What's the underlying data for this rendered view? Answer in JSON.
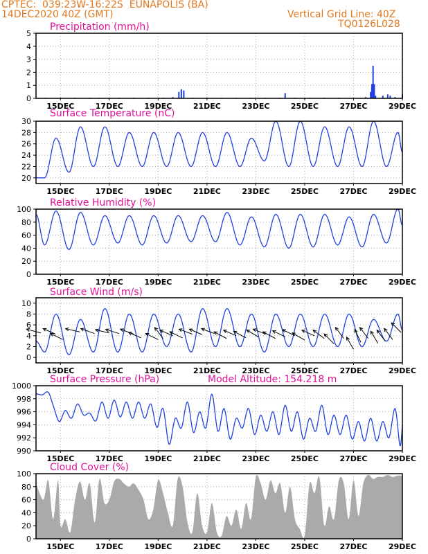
{
  "header": {
    "station": "CPTEC:  039:23W-16:22S  EUNAPOLIS (BA)",
    "date": "14DEC2020 40Z (GMT)",
    "vgrid": "Vertical Grid Line: 40Z",
    "code": "TQ0126L028"
  },
  "colors": {
    "line": "#2040e0",
    "title": "#e0109a",
    "header": "#e07820",
    "cloud": "#aaaaaa",
    "grid": "#aaaaaa"
  },
  "chart_data": [
    {
      "id": "precip",
      "type": "bar",
      "title": "Precipitation (mm/h)",
      "ylim": [
        0,
        5
      ],
      "yticks": [
        0,
        1,
        2,
        3,
        4,
        5
      ],
      "xticks": [
        "15DEC",
        "17DEC",
        "19DEC",
        "21DEC",
        "23DEC",
        "25DEC",
        "27DEC",
        "29DEC"
      ],
      "grid": true,
      "points": [
        [
          14.4,
          0.05
        ],
        [
          15.0,
          0.05
        ],
        [
          15.6,
          0.05
        ],
        [
          16.2,
          0.05
        ],
        [
          16.6,
          0.05
        ],
        [
          17.4,
          0.05
        ],
        [
          18.0,
          0.05
        ],
        [
          18.6,
          0.05
        ],
        [
          19.2,
          0.05
        ],
        [
          19.6,
          0.1
        ],
        [
          19.85,
          0.5
        ],
        [
          19.95,
          0.7
        ],
        [
          20.05,
          0.6
        ],
        [
          20.4,
          0.05
        ],
        [
          21.0,
          0.05
        ],
        [
          21.6,
          0.05
        ],
        [
          22.2,
          0.05
        ],
        [
          22.8,
          0.05
        ],
        [
          23.4,
          0.05
        ],
        [
          24.0,
          0.05
        ],
        [
          24.2,
          0.4
        ],
        [
          24.6,
          0.05
        ],
        [
          25.2,
          0.05
        ],
        [
          25.8,
          0.05
        ],
        [
          26.4,
          0.05
        ],
        [
          27.0,
          0.05
        ],
        [
          27.5,
          0.1
        ],
        [
          27.7,
          0.5
        ],
        [
          27.75,
          1.1
        ],
        [
          27.8,
          2.5
        ],
        [
          27.85,
          1.1
        ],
        [
          27.9,
          0.2
        ],
        [
          28.2,
          0.2
        ],
        [
          28.4,
          0.3
        ],
        [
          28.5,
          0.2
        ],
        [
          28.7,
          0.1
        ],
        [
          29.0,
          0.3
        ]
      ]
    },
    {
      "id": "temp",
      "type": "line",
      "title": "Surface Temperature (nC)",
      "ylim": [
        19,
        30
      ],
      "yticks": [
        20,
        22,
        24,
        26,
        28,
        30
      ],
      "xticks": [
        "15DEC",
        "17DEC",
        "19DEC",
        "21DEC",
        "23DEC",
        "25DEC",
        "27DEC",
        "29DEC"
      ],
      "grid": true,
      "days": [
        14.5,
        15.5,
        16.5,
        17.5,
        18.5,
        19.5,
        20.5,
        21.5,
        22.5,
        23.5,
        24.5,
        25.5,
        26.5,
        27.5,
        28.5
      ],
      "min": [
        20,
        21,
        22,
        22,
        22,
        22,
        22,
        22,
        22,
        23,
        22,
        22,
        22,
        22,
        22
      ],
      "max": [
        27,
        29,
        29,
        28,
        28,
        28,
        28,
        28,
        27,
        30,
        30,
        29,
        29,
        30,
        28
      ],
      "start": 20,
      "end": 24.5
    },
    {
      "id": "rh",
      "type": "line",
      "title": "Relative Humidity (%)",
      "ylim": [
        0,
        100
      ],
      "yticks": [
        0,
        20,
        40,
        60,
        80,
        100
      ],
      "xticks": [
        "15DEC",
        "17DEC",
        "19DEC",
        "21DEC",
        "23DEC",
        "25DEC",
        "27DEC",
        "29DEC"
      ],
      "grid": true,
      "days": [
        14.5,
        15.5,
        16.5,
        17.5,
        18.5,
        19.5,
        20.5,
        21.5,
        22.5,
        23.5,
        24.5,
        25.5,
        26.5,
        27.5,
        28.5
      ],
      "min": [
        45,
        38,
        45,
        48,
        45,
        48,
        50,
        50,
        45,
        42,
        40,
        42,
        45,
        42,
        48
      ],
      "max": [
        97,
        95,
        90,
        90,
        90,
        90,
        90,
        95,
        88,
        92,
        92,
        92,
        88,
        92,
        100
      ],
      "start": 92,
      "end": 75
    },
    {
      "id": "wind",
      "type": "line",
      "title": "Surface Wind (m/s)",
      "ylim": [
        -1,
        11
      ],
      "yticks": [
        0,
        2,
        4,
        6,
        8,
        10
      ],
      "xticks": [
        "15DEC",
        "17DEC",
        "19DEC",
        "21DEC",
        "23DEC",
        "25DEC",
        "27DEC",
        "29DEC"
      ],
      "grid": true,
      "days": [
        14.5,
        15.5,
        16.5,
        17.5,
        18.5,
        19.5,
        20.5,
        21.5,
        22.5,
        23.5,
        24.5,
        25.5,
        26.5,
        27.5,
        28.5
      ],
      "min": [
        1,
        0.5,
        1,
        1,
        1,
        2,
        1,
        2,
        2,
        1,
        2,
        2,
        2,
        2,
        3
      ],
      "max": [
        8,
        7,
        9,
        8,
        8,
        8,
        9,
        9,
        8,
        8,
        8,
        8,
        8,
        7,
        8
      ],
      "start": 3,
      "end": 5,
      "vectors": [
        [
          14.2,
          4.5,
          0.52,
          -0.14
        ],
        [
          14.8,
          4.3,
          0.45,
          -0.2
        ],
        [
          15.1,
          3.3,
          0.45,
          -0.22
        ],
        [
          15.8,
          4.7,
          0.52,
          -0.12
        ],
        [
          16.4,
          4.4,
          0.5,
          -0.18
        ],
        [
          17.0,
          4.5,
          0.5,
          -0.12
        ],
        [
          17.4,
          4.4,
          0.48,
          -0.15
        ],
        [
          18.0,
          4.3,
          0.48,
          -0.18
        ],
        [
          18.3,
          3.6,
          0.45,
          -0.2
        ],
        [
          19.0,
          3.3,
          0.45,
          -0.22
        ],
        [
          19.2,
          3.5,
          0.3,
          -0.4
        ],
        [
          19.6,
          4.0,
          0.46,
          -0.2
        ],
        [
          20.0,
          3.6,
          0.46,
          -0.22
        ],
        [
          20.4,
          4.3,
          0.48,
          -0.18
        ],
        [
          20.8,
          4.2,
          0.46,
          -0.2
        ],
        [
          21.3,
          4.4,
          0.46,
          -0.18
        ],
        [
          21.8,
          3.5,
          0.45,
          -0.24
        ],
        [
          22.2,
          4.0,
          0.46,
          -0.2
        ],
        [
          22.6,
          3.6,
          0.45,
          -0.24
        ],
        [
          23.1,
          3.8,
          0.42,
          -0.25
        ],
        [
          23.4,
          4.3,
          0.45,
          -0.18
        ],
        [
          23.8,
          3.5,
          0.45,
          -0.24
        ],
        [
          24.2,
          3.8,
          0.45,
          -0.22
        ],
        [
          24.6,
          4.0,
          0.45,
          -0.22
        ],
        [
          25.0,
          3.2,
          0.45,
          -0.26
        ],
        [
          25.4,
          4.0,
          0.45,
          -0.2
        ],
        [
          25.8,
          3.5,
          0.4,
          -0.3
        ],
        [
          26.2,
          2.5,
          0.35,
          -0.36
        ],
        [
          26.6,
          3.5,
          0.3,
          -0.4
        ],
        [
          27.0,
          1.5,
          0.25,
          -0.44
        ],
        [
          27.3,
          2.8,
          0.22,
          -0.46
        ],
        [
          27.6,
          3.5,
          0.3,
          -0.4
        ],
        [
          28.0,
          2.6,
          0.26,
          -0.44
        ],
        [
          28.3,
          3.0,
          0.3,
          -0.4
        ],
        [
          28.6,
          3.3,
          0.3,
          -0.4
        ],
        [
          28.95,
          4.6,
          0.35,
          -0.35
        ]
      ]
    },
    {
      "id": "press",
      "type": "line",
      "title": "Surface Pressure (hPa)",
      "note": "Model Altitude: 154.218 m",
      "ylim": [
        990,
        1000
      ],
      "yticks": [
        990,
        992,
        994,
        996,
        998,
        1000
      ],
      "xticks": [
        "15DEC",
        "17DEC",
        "19DEC",
        "21DEC",
        "23DEC",
        "25DEC",
        "27DEC",
        "29DEC"
      ],
      "grid": true,
      "values": [
        [
          14.0,
          998.8
        ],
        [
          14.25,
          998.6
        ],
        [
          14.5,
          999.0
        ],
        [
          14.7,
          997.0
        ],
        [
          14.95,
          994.5
        ],
        [
          15.2,
          996.2
        ],
        [
          15.45,
          995.0
        ],
        [
          15.7,
          997.2
        ],
        [
          15.95,
          995.5
        ],
        [
          16.2,
          995.8
        ],
        [
          16.45,
          994.6
        ],
        [
          16.7,
          997.5
        ],
        [
          16.95,
          995.0
        ],
        [
          17.2,
          997.8
        ],
        [
          17.45,
          995.2
        ],
        [
          17.7,
          997.5
        ],
        [
          17.95,
          995.0
        ],
        [
          18.2,
          997.5
        ],
        [
          18.45,
          995.0
        ],
        [
          18.7,
          997.2
        ],
        [
          18.95,
          993.6
        ],
        [
          19.2,
          996.5
        ],
        [
          19.45,
          991.0
        ],
        [
          19.7,
          995.0
        ],
        [
          19.95,
          993.5
        ],
        [
          20.2,
          997.5
        ],
        [
          20.45,
          992.8
        ],
        [
          20.7,
          996.0
        ],
        [
          20.95,
          993.5
        ],
        [
          21.2,
          998.7
        ],
        [
          21.45,
          993.0
        ],
        [
          21.7,
          996.5
        ],
        [
          21.95,
          991.8
        ],
        [
          22.2,
          995.0
        ],
        [
          22.45,
          993.5
        ],
        [
          22.7,
          996.5
        ],
        [
          22.95,
          992.5
        ],
        [
          23.2,
          995.5
        ],
        [
          23.45,
          993.0
        ],
        [
          23.7,
          996.0
        ],
        [
          23.95,
          992.5
        ],
        [
          24.2,
          997.0
        ],
        [
          24.45,
          993.0
        ],
        [
          24.7,
          996.0
        ],
        [
          24.95,
          991.8
        ],
        [
          25.2,
          995.0
        ],
        [
          25.45,
          993.0
        ],
        [
          25.7,
          997.0
        ],
        [
          25.95,
          992.5
        ],
        [
          26.2,
          995.5
        ],
        [
          26.45,
          992.5
        ],
        [
          26.7,
          995.5
        ],
        [
          26.95,
          991.8
        ],
        [
          27.2,
          994.5
        ],
        [
          27.45,
          991.5
        ],
        [
          27.7,
          995.0
        ],
        [
          27.95,
          991.5
        ],
        [
          28.2,
          994.5
        ],
        [
          28.45,
          992.0
        ],
        [
          28.7,
          996.5
        ],
        [
          28.9,
          990.8
        ],
        [
          29.0,
          994.0
        ]
      ]
    },
    {
      "id": "cloud",
      "type": "area",
      "title": "Cloud Cover (%)",
      "ylim": [
        0,
        100
      ],
      "yticks": [
        0,
        20,
        40,
        60,
        80,
        100
      ],
      "xticks": [
        "15DEC",
        "17DEC",
        "19DEC",
        "21DEC",
        "23DEC",
        "25DEC",
        "27DEC",
        "29DEC"
      ],
      "grid": true,
      "values": [
        [
          14.0,
          85
        ],
        [
          14.3,
          60
        ],
        [
          14.5,
          90
        ],
        [
          14.7,
          30
        ],
        [
          14.9,
          90
        ],
        [
          15.0,
          20
        ],
        [
          15.2,
          30
        ],
        [
          15.4,
          10
        ],
        [
          15.6,
          60
        ],
        [
          15.8,
          88
        ],
        [
          16.0,
          60
        ],
        [
          16.2,
          85
        ],
        [
          16.4,
          25
        ],
        [
          16.6,
          92
        ],
        [
          16.8,
          55
        ],
        [
          17.0,
          60
        ],
        [
          17.2,
          88
        ],
        [
          17.4,
          92
        ],
        [
          17.6,
          85
        ],
        [
          17.8,
          80
        ],
        [
          18.0,
          85
        ],
        [
          18.2,
          75
        ],
        [
          18.4,
          60
        ],
        [
          18.6,
          30
        ],
        [
          18.8,
          45
        ],
        [
          19.0,
          90
        ],
        [
          19.2,
          70
        ],
        [
          19.4,
          40
        ],
        [
          19.6,
          20
        ],
        [
          19.8,
          92
        ],
        [
          20.0,
          80
        ],
        [
          20.2,
          25
        ],
        [
          20.4,
          10
        ],
        [
          20.6,
          70
        ],
        [
          20.8,
          20
        ],
        [
          21.0,
          10
        ],
        [
          21.2,
          55
        ],
        [
          21.4,
          10
        ],
        [
          21.6,
          5
        ],
        [
          21.8,
          35
        ],
        [
          22.0,
          20
        ],
        [
          22.2,
          45
        ],
        [
          22.4,
          15
        ],
        [
          22.6,
          55
        ],
        [
          22.8,
          30
        ],
        [
          23.0,
          95
        ],
        [
          23.2,
          85
        ],
        [
          23.4,
          60
        ],
        [
          23.6,
          90
        ],
        [
          23.8,
          70
        ],
        [
          24.0,
          85
        ],
        [
          24.2,
          40
        ],
        [
          24.4,
          80
        ],
        [
          24.6,
          30
        ],
        [
          24.8,
          15
        ],
        [
          25.0,
          5
        ],
        [
          25.2,
          85
        ],
        [
          25.4,
          70
        ],
        [
          25.6,
          95
        ],
        [
          25.8,
          20
        ],
        [
          26.0,
          50
        ],
        [
          26.2,
          30
        ],
        [
          26.4,
          90
        ],
        [
          26.6,
          85
        ],
        [
          26.8,
          30
        ],
        [
          27.0,
          90
        ],
        [
          27.2,
          35
        ],
        [
          27.4,
          85
        ],
        [
          27.6,
          98
        ],
        [
          27.8,
          92
        ],
        [
          28.0,
          95
        ],
        [
          28.2,
          95
        ],
        [
          28.4,
          98
        ],
        [
          28.6,
          95
        ],
        [
          28.8,
          97
        ],
        [
          29.0,
          97
        ]
      ]
    }
  ]
}
